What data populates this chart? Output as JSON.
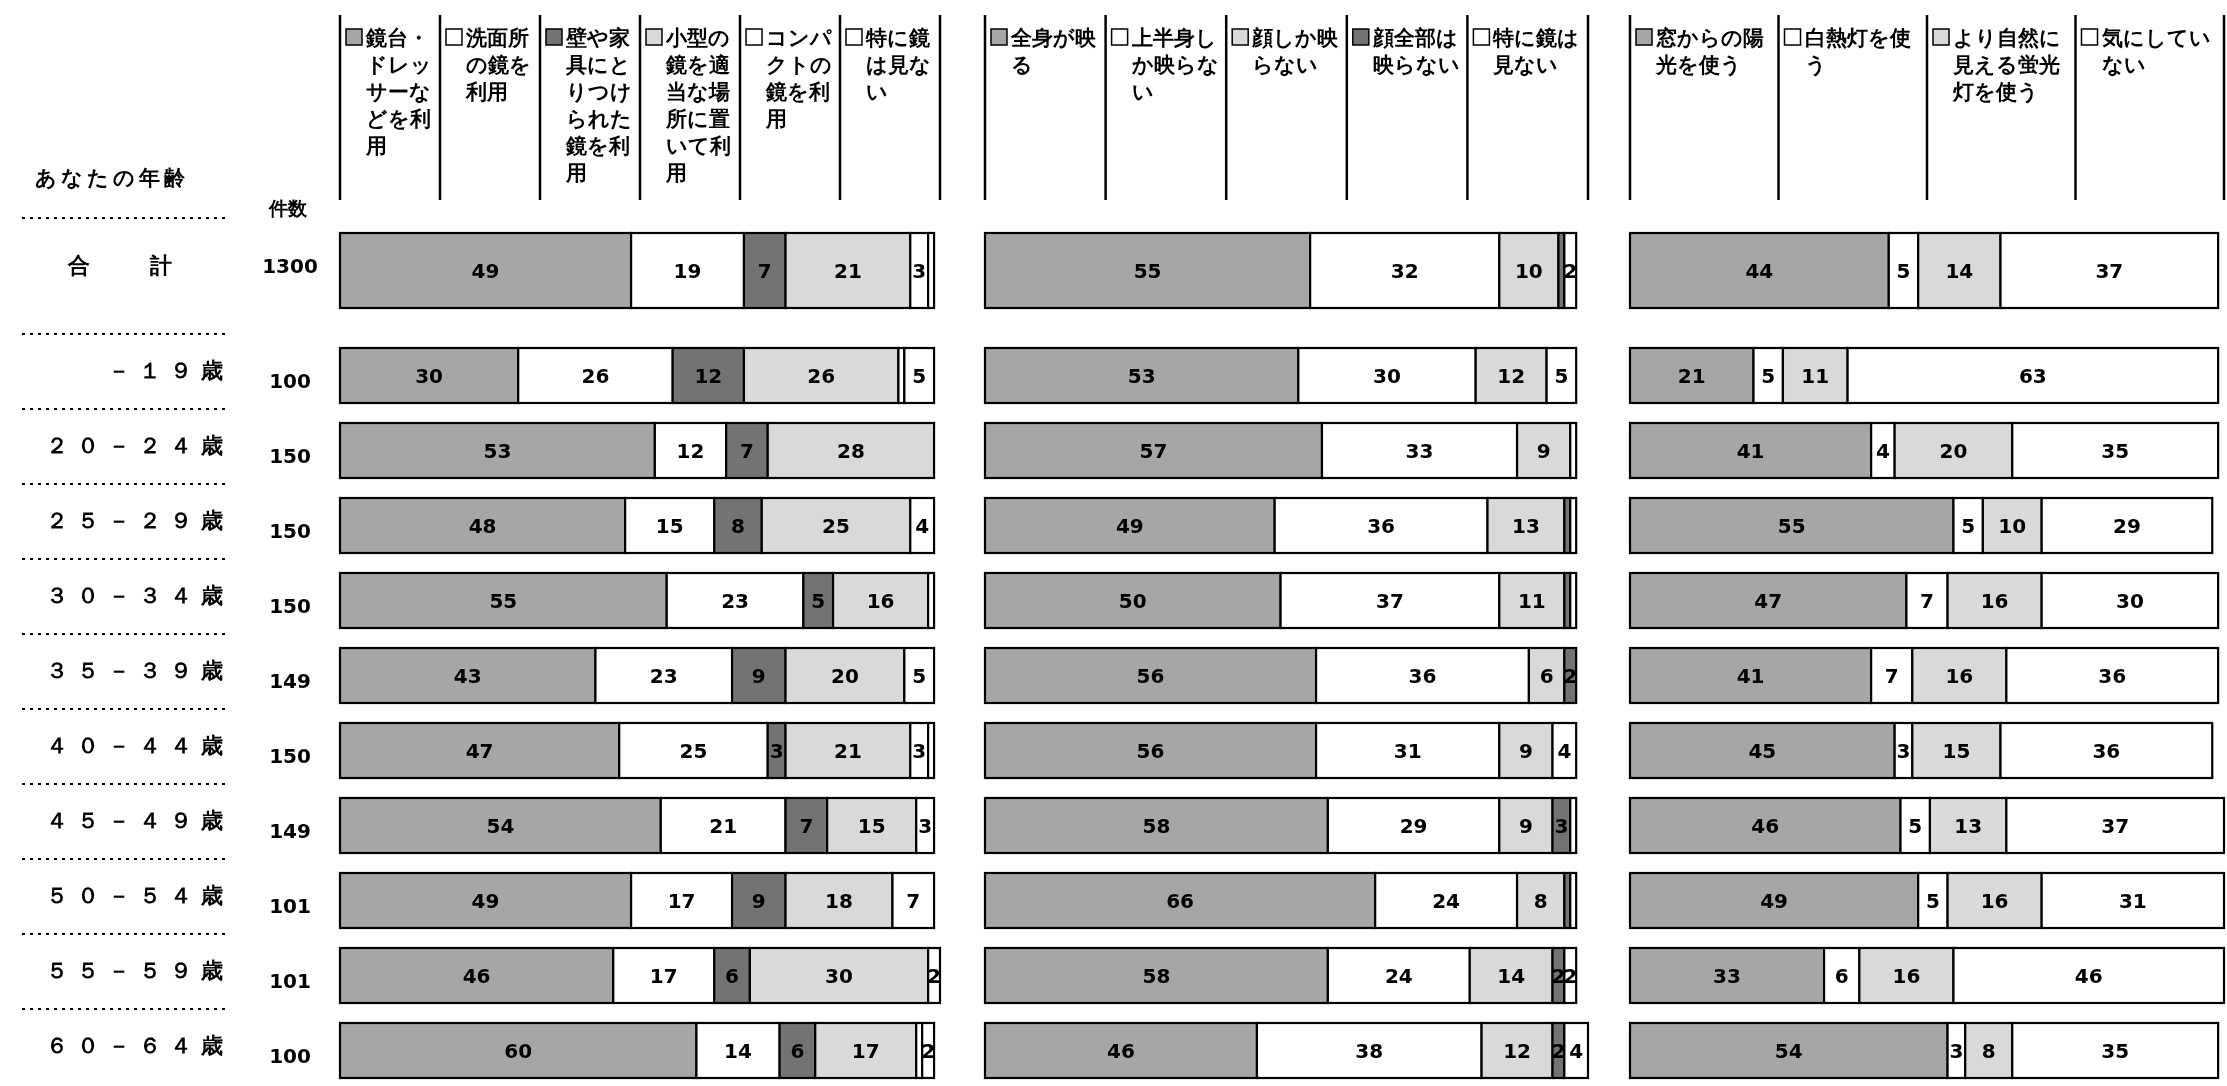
{
  "chart_data": [
    {
      "type": "bar",
      "orientation": "horizontal",
      "stacked": true,
      "legend": "top",
      "ylabel": "あなたの年齢",
      "categories": [
        "合計",
        "－１９歳",
        "２０－２４歳",
        "２５－２９歳",
        "３０－３４歳",
        "３５－３９歳",
        "４０－４４歳",
        "４５－４９歳",
        "５０－５４歳",
        "５５－５９歳",
        "６０－６４歳"
      ],
      "annotations": [
        "件数",
        "1300",
        "100",
        "150",
        "150",
        "150",
        "149",
        "150",
        "149",
        "101",
        "101",
        "100"
      ],
      "series": [
        {
          "name": "鏡台・ドレッサーなどを利用",
          "color": "#a6a6a6",
          "values": [
            49,
            30,
            53,
            48,
            55,
            43,
            47,
            54,
            49,
            46,
            60
          ],
          "value_labels": [
            "49",
            "30",
            "53",
            "48",
            "55",
            "43",
            "47",
            "54",
            "49",
            "46",
            "60"
          ]
        },
        {
          "name": "洗面所の鏡を利用",
          "color": "#ffffff",
          "values": [
            19,
            26,
            12,
            15,
            23,
            23,
            25,
            21,
            17,
            17,
            14
          ],
          "value_labels": [
            "19",
            "26",
            "12",
            "15",
            "23",
            "23",
            "25",
            "21",
            "17",
            "17",
            "14"
          ]
        },
        {
          "name": "壁や家具にとりつけられた鏡を利用",
          "color": "#737373",
          "values": [
            7,
            12,
            7,
            8,
            5,
            9,
            3,
            7,
            9,
            6,
            6
          ],
          "value_labels": [
            "7",
            "12",
            "7",
            "8",
            "5",
            "9",
            "3",
            "7",
            "9",
            "6",
            "6"
          ]
        },
        {
          "name": "小型の鏡を適当な場所に置いて利用",
          "color": "#d9d9d9",
          "values": [
            21,
            26,
            28,
            25,
            16,
            20,
            21,
            15,
            18,
            30,
            17
          ],
          "value_labels": [
            "21",
            "26",
            "28",
            "25",
            "16",
            "20",
            "21",
            "15",
            "18",
            "30",
            "17"
          ]
        },
        {
          "name": "コンパクトの鏡を利用",
          "color": "#ffffff",
          "values": [
            3,
            1,
            0,
            0,
            1,
            0,
            3,
            0,
            7,
            0,
            1
          ],
          "value_labels": [
            "3",
            null,
            null,
            null,
            null,
            null,
            "3",
            null,
            "7",
            null,
            null
          ]
        },
        {
          "name": "特に鏡は見ない",
          "color": "#ffffff",
          "values": [
            1,
            5,
            0,
            4,
            0,
            5,
            1,
            3,
            0,
            2,
            2
          ],
          "value_labels": [
            null,
            "5",
            null,
            "4",
            null,
            "5",
            null,
            "3",
            null,
            "2",
            "2"
          ]
        }
      ]
    },
    {
      "type": "bar",
      "orientation": "horizontal",
      "stacked": true,
      "legend": "top",
      "categories": [
        null,
        null,
        null,
        null,
        null,
        null,
        null,
        null,
        null,
        null,
        null
      ],
      "series": [
        {
          "name": "全身が映る",
          "color": "#a6a6a6",
          "values": [
            55,
            53,
            57,
            49,
            50,
            56,
            56,
            58,
            66,
            58,
            46
          ],
          "value_labels": [
            "55",
            "53",
            "57",
            "49",
            "50",
            "56",
            "56",
            "58",
            "66",
            "58",
            "46"
          ]
        },
        {
          "name": "上半身しか映らない",
          "color": "#ffffff",
          "values": [
            32,
            30,
            33,
            36,
            37,
            36,
            31,
            29,
            24,
            24,
            38
          ],
          "value_labels": [
            "32",
            "30",
            "33",
            "36",
            "37",
            "36",
            "31",
            "29",
            "24",
            "24",
            "38"
          ]
        },
        {
          "name": "顔しか映らない",
          "color": "#d9d9d9",
          "values": [
            10,
            12,
            9,
            13,
            11,
            6,
            9,
            9,
            8,
            14,
            12
          ],
          "value_labels": [
            "10",
            "12",
            "9",
            "13",
            "11",
            "6",
            "9",
            "9",
            "8",
            "14",
            "12"
          ]
        },
        {
          "name": "顔全部は映らない",
          "color": "#737373",
          "values": [
            1,
            0,
            0,
            1,
            1,
            2,
            0,
            3,
            1,
            2,
            2
          ],
          "value_labels": [
            null,
            null,
            null,
            null,
            null,
            "2",
            null,
            "3",
            null,
            "2",
            "2"
          ]
        },
        {
          "name": "特に鏡は見ない",
          "color": "#ffffff",
          "values": [
            2,
            5,
            1,
            1,
            1,
            0,
            4,
            1,
            1,
            2,
            4
          ],
          "value_labels": [
            "2",
            "5",
            null,
            null,
            null,
            null,
            "4",
            null,
            null,
            "2",
            "4"
          ]
        }
      ]
    },
    {
      "type": "bar",
      "orientation": "horizontal",
      "stacked": true,
      "legend": "top",
      "categories": [
        null,
        null,
        null,
        null,
        null,
        null,
        null,
        null,
        null,
        null,
        null
      ],
      "series": [
        {
          "name": "窓からの陽光を使う",
          "color": "#a6a6a6",
          "values": [
            44,
            21,
            41,
            55,
            47,
            41,
            45,
            46,
            49,
            33,
            54
          ],
          "value_labels": [
            "44",
            "21",
            "41",
            "55",
            "47",
            "41",
            "45",
            "46",
            "49",
            "33",
            "54"
          ]
        },
        {
          "name": "白熱灯を使う",
          "color": "#ffffff",
          "values": [
            5,
            5,
            4,
            5,
            7,
            7,
            3,
            5,
            5,
            6,
            3
          ],
          "value_labels": [
            "5",
            "5",
            "4",
            "5",
            "7",
            "7",
            "3",
            "5",
            "5",
            "6",
            "3"
          ]
        },
        {
          "name": "より自然に見える蛍光灯を使う",
          "color": "#d9d9d9",
          "values": [
            14,
            11,
            20,
            10,
            16,
            16,
            15,
            13,
            16,
            16,
            8
          ],
          "value_labels": [
            "14",
            "11",
            "20",
            "10",
            "16",
            "16",
            "15",
            "13",
            "16",
            "16",
            "8"
          ]
        },
        {
          "name": "気にしていない",
          "color": "#ffffff",
          "values": [
            37,
            63,
            35,
            29,
            30,
            36,
            36,
            37,
            31,
            46,
            35
          ],
          "value_labels": [
            "37",
            "63",
            "35",
            "29",
            "30",
            "36",
            "36",
            "37",
            "31",
            "46",
            "35"
          ]
        }
      ]
    }
  ]
}
